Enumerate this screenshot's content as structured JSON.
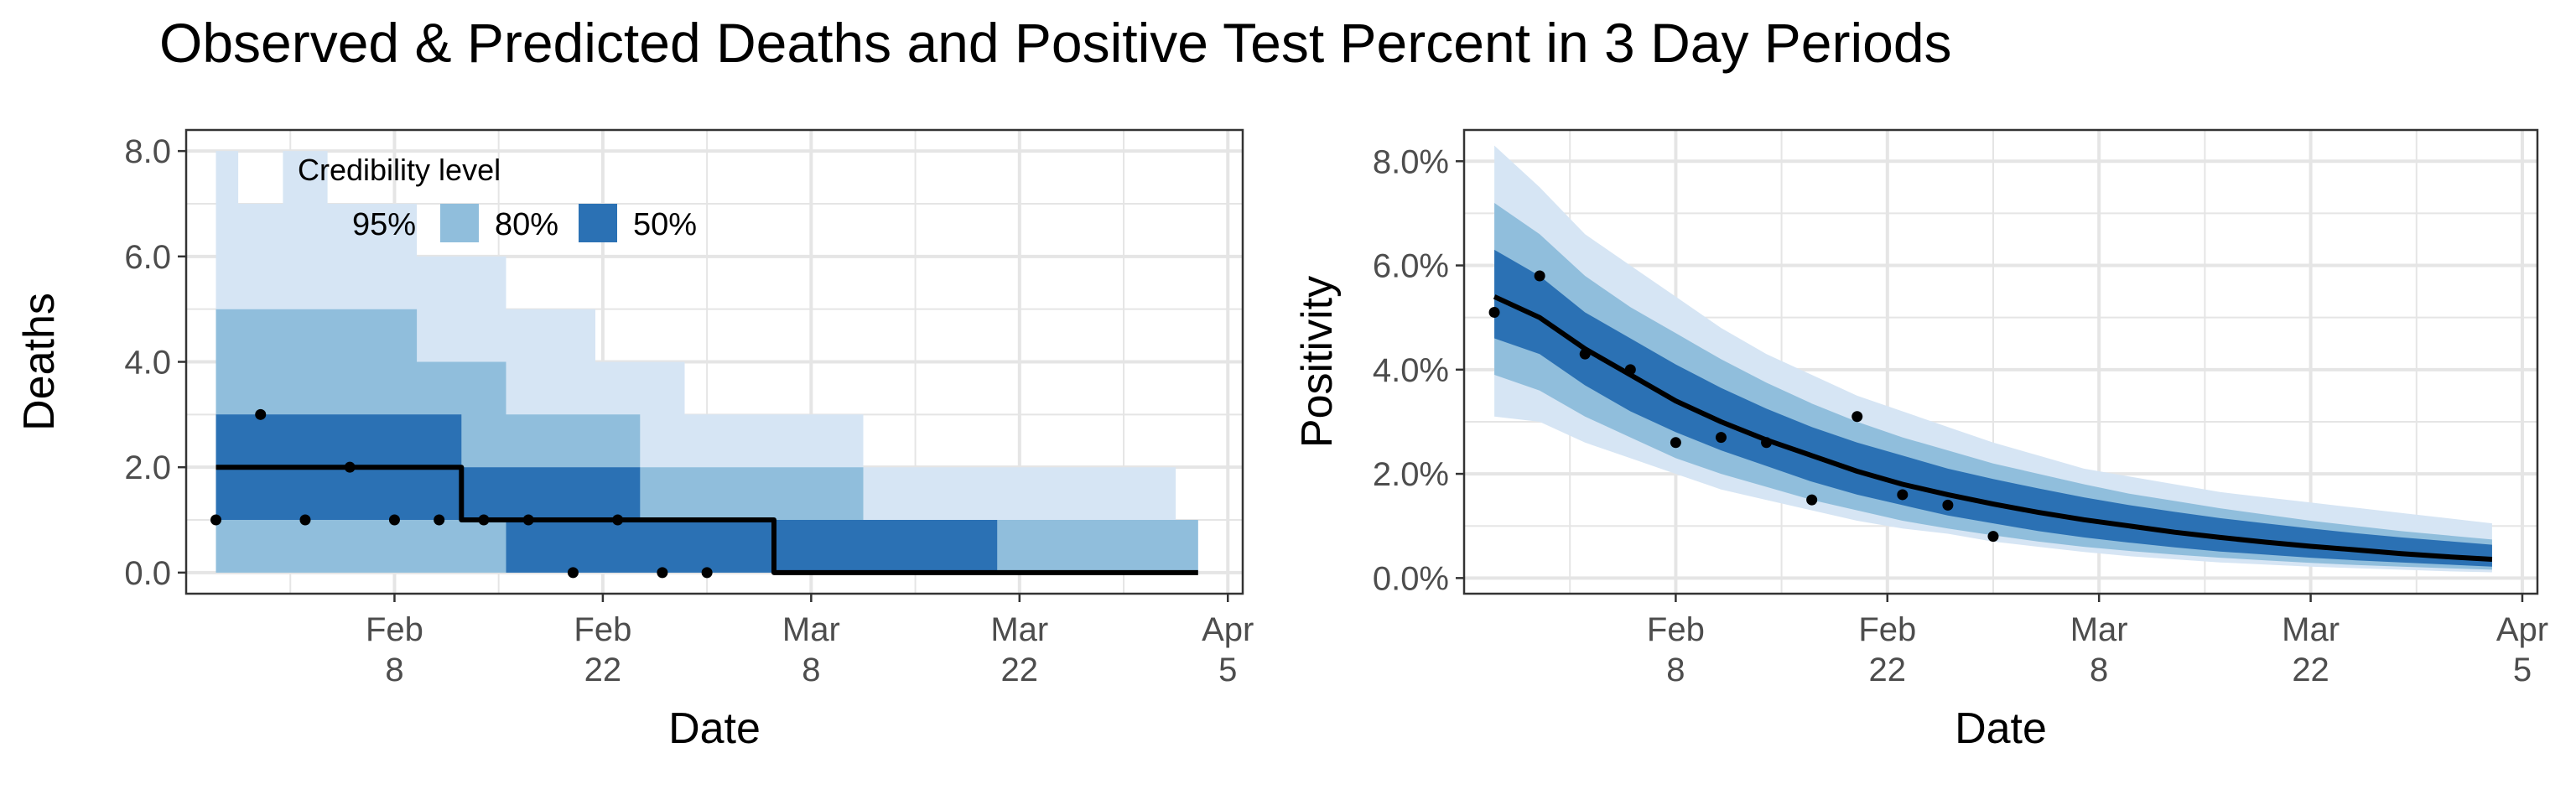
{
  "title": "Observed & Predicted Deaths and Positive Test Percent in 3 Day Periods",
  "colors": {
    "band95": "#d6e5f4",
    "band80": "#90bedc",
    "band50": "#2b71b4",
    "median": "#000000",
    "points": "#000000",
    "grid": "#e5e5e5",
    "axis_text": "#4d4d4d"
  },
  "chart_data": [
    {
      "type": "area",
      "name": "deaths",
      "xlabel": "Date",
      "ylabel": "Deaths",
      "x_range": [
        "2021-01-25",
        "2021-04-06"
      ],
      "ylim": [
        -0.4,
        8.4
      ],
      "yticks": [
        0,
        2,
        4,
        6,
        8
      ],
      "ytick_labels": [
        "0.0",
        "2.0",
        "4.0",
        "6.0",
        "8.0"
      ],
      "xticks": [
        {
          "date": "2021-02-08",
          "month": "Feb",
          "day": "8"
        },
        {
          "date": "2021-02-22",
          "month": "Feb",
          "day": "22"
        },
        {
          "date": "2021-03-08",
          "month": "Mar",
          "day": "8"
        },
        {
          "date": "2021-03-22",
          "month": "Mar",
          "day": "22"
        },
        {
          "date": "2021-04-05",
          "month": "Apr",
          "day": "5"
        }
      ],
      "grid": true,
      "legend": {
        "title": "Credibility level",
        "position": "top-left",
        "items": [
          {
            "label": "95%",
            "key": "band95"
          },
          {
            "label": "80%",
            "key": "band80"
          },
          {
            "label": "50%",
            "key": "band50"
          }
        ]
      },
      "dates": [
        "2021-01-27",
        "2021-01-30",
        "2021-02-02",
        "2021-02-05",
        "2021-02-08",
        "2021-02-11",
        "2021-02-14",
        "2021-02-17",
        "2021-02-20",
        "2021-02-23",
        "2021-02-26",
        "2021-03-01",
        "2021-03-04",
        "2021-03-07",
        "2021-03-10",
        "2021-03-13",
        "2021-03-16",
        "2021-03-19",
        "2021-03-22",
        "2021-03-25",
        "2021-03-28",
        "2021-03-31",
        "2021-04-03"
      ],
      "bands": {
        "band95": {
          "lower": [
            0,
            0,
            0,
            0,
            0,
            0,
            0,
            0,
            0,
            0,
            0,
            0,
            0,
            0,
            0,
            0,
            0,
            0,
            0,
            0,
            0,
            0,
            0
          ],
          "upper": [
            8,
            7,
            8,
            7,
            7,
            6,
            6,
            5,
            5,
            4,
            4,
            3,
            3,
            3,
            3,
            2,
            2,
            2,
            2,
            2,
            2,
            2,
            1
          ]
        },
        "band80": {
          "lower": [
            0,
            0,
            0,
            0,
            0,
            0,
            0,
            0,
            0,
            0,
            0,
            0,
            0,
            0,
            0,
            0,
            0,
            0,
            0,
            0,
            0,
            0,
            0
          ],
          "upper": [
            5,
            5,
            5,
            5,
            5,
            4,
            4,
            3,
            3,
            3,
            2,
            2,
            2,
            2,
            2,
            1,
            1,
            1,
            1,
            1,
            1,
            1,
            1
          ]
        },
        "band50": {
          "lower": [
            1,
            1,
            1,
            1,
            1,
            1,
            1,
            0,
            0,
            0,
            0,
            0,
            0,
            0,
            0,
            0,
            0,
            0,
            0,
            0,
            0,
            0,
            0
          ],
          "upper": [
            3,
            3,
            3,
            3,
            3,
            3,
            2,
            2,
            2,
            2,
            1,
            1,
            1,
            1,
            1,
            1,
            1,
            1,
            0,
            0,
            0,
            0,
            0
          ]
        }
      },
      "median": [
        2,
        2,
        2,
        2,
        2,
        2,
        1,
        1,
        1,
        1,
        1,
        1,
        1,
        0,
        0,
        0,
        0,
        0,
        0,
        0,
        0,
        0,
        0
      ],
      "observed": [
        {
          "date": "2021-01-27",
          "value": 1
        },
        {
          "date": "2021-01-30",
          "value": 3
        },
        {
          "date": "2021-02-02",
          "value": 1
        },
        {
          "date": "2021-02-05",
          "value": 2
        },
        {
          "date": "2021-02-08",
          "value": 1
        },
        {
          "date": "2021-02-11",
          "value": 1
        },
        {
          "date": "2021-02-14",
          "value": 1
        },
        {
          "date": "2021-02-17",
          "value": 1
        },
        {
          "date": "2021-02-20",
          "value": 0
        },
        {
          "date": "2021-02-23",
          "value": 1
        },
        {
          "date": "2021-02-26",
          "value": 0
        },
        {
          "date": "2021-03-01",
          "value": 0
        }
      ]
    },
    {
      "type": "area",
      "name": "positivity",
      "xlabel": "Date",
      "ylabel": "Positivity",
      "x_range": [
        "2021-01-25",
        "2021-04-06"
      ],
      "ylim": [
        -0.3,
        8.6
      ],
      "yticks": [
        0,
        2,
        4,
        6,
        8
      ],
      "ytick_labels": [
        "0.0%",
        "2.0%",
        "4.0%",
        "6.0%",
        "8.0%"
      ],
      "xticks": [
        {
          "date": "2021-02-08",
          "month": "Feb",
          "day": "8"
        },
        {
          "date": "2021-02-22",
          "month": "Feb",
          "day": "22"
        },
        {
          "date": "2021-03-08",
          "month": "Mar",
          "day": "8"
        },
        {
          "date": "2021-03-22",
          "month": "Mar",
          "day": "22"
        },
        {
          "date": "2021-04-05",
          "month": "Apr",
          "day": "5"
        }
      ],
      "grid": true,
      "dates": [
        "2021-01-27",
        "2021-01-30",
        "2021-02-02",
        "2021-02-05",
        "2021-02-08",
        "2021-02-11",
        "2021-02-14",
        "2021-02-17",
        "2021-02-20",
        "2021-02-23",
        "2021-02-26",
        "2021-03-01",
        "2021-03-04",
        "2021-03-07",
        "2021-03-10",
        "2021-03-13",
        "2021-03-16",
        "2021-03-19",
        "2021-03-22",
        "2021-03-25",
        "2021-03-28",
        "2021-03-31",
        "2021-04-03"
      ],
      "bands": {
        "band95": {
          "lower": [
            3.1,
            3.0,
            2.6,
            2.3,
            2.0,
            1.7,
            1.5,
            1.3,
            1.1,
            0.95,
            0.85,
            0.7,
            0.6,
            0.5,
            0.42,
            0.36,
            0.3,
            0.26,
            0.22,
            0.19,
            0.16,
            0.13,
            0.11
          ],
          "upper": [
            8.3,
            7.5,
            6.6,
            6.0,
            5.4,
            4.8,
            4.3,
            3.9,
            3.5,
            3.2,
            2.9,
            2.6,
            2.35,
            2.1,
            1.95,
            1.8,
            1.65,
            1.55,
            1.45,
            1.35,
            1.25,
            1.15,
            1.05
          ]
        },
        "band80": {
          "lower": [
            3.9,
            3.6,
            3.1,
            2.7,
            2.3,
            2.0,
            1.75,
            1.5,
            1.3,
            1.1,
            0.95,
            0.82,
            0.7,
            0.6,
            0.52,
            0.45,
            0.39,
            0.34,
            0.29,
            0.25,
            0.22,
            0.19,
            0.16
          ],
          "upper": [
            7.2,
            6.6,
            5.8,
            5.2,
            4.7,
            4.2,
            3.75,
            3.35,
            3.0,
            2.7,
            2.45,
            2.2,
            2.0,
            1.8,
            1.62,
            1.48,
            1.34,
            1.22,
            1.1,
            1.0,
            0.9,
            0.82,
            0.74
          ]
        },
        "band50": {
          "lower": [
            4.6,
            4.3,
            3.7,
            3.2,
            2.8,
            2.45,
            2.15,
            1.85,
            1.6,
            1.4,
            1.2,
            1.05,
            0.9,
            0.78,
            0.68,
            0.59,
            0.51,
            0.45,
            0.39,
            0.34,
            0.3,
            0.26,
            0.22
          ],
          "upper": [
            6.3,
            5.8,
            5.1,
            4.6,
            4.1,
            3.65,
            3.25,
            2.9,
            2.6,
            2.35,
            2.1,
            1.9,
            1.72,
            1.55,
            1.4,
            1.27,
            1.15,
            1.05,
            0.95,
            0.86,
            0.78,
            0.71,
            0.64
          ]
        }
      },
      "median": [
        5.4,
        5.0,
        4.4,
        3.9,
        3.4,
        3.0,
        2.65,
        2.35,
        2.05,
        1.8,
        1.6,
        1.42,
        1.26,
        1.12,
        1.0,
        0.88,
        0.78,
        0.69,
        0.61,
        0.54,
        0.47,
        0.41,
        0.36
      ],
      "observed": [
        {
          "date": "2021-01-27",
          "value": 5.1
        },
        {
          "date": "2021-01-30",
          "value": 5.8
        },
        {
          "date": "2021-02-02",
          "value": 4.3
        },
        {
          "date": "2021-02-05",
          "value": 4.0
        },
        {
          "date": "2021-02-08",
          "value": 2.6
        },
        {
          "date": "2021-02-11",
          "value": 2.7
        },
        {
          "date": "2021-02-14",
          "value": 2.6
        },
        {
          "date": "2021-02-17",
          "value": 1.5
        },
        {
          "date": "2021-02-20",
          "value": 3.1
        },
        {
          "date": "2021-02-23",
          "value": 1.6
        },
        {
          "date": "2021-02-26",
          "value": 1.4
        },
        {
          "date": "2021-03-01",
          "value": 0.8
        }
      ]
    }
  ]
}
